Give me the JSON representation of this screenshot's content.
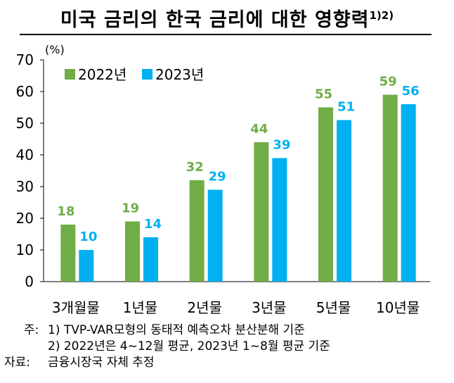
{
  "title": "미국 금리의 한국 금리에 대한 영향력",
  "title_sup": "1)2)",
  "chart_data": {
    "type": "bar",
    "ylabel": "(%)",
    "ylim": [
      0,
      70
    ],
    "yticks": [
      0,
      10,
      20,
      30,
      40,
      50,
      60,
      70
    ],
    "grid": false,
    "legend_position": "top-left",
    "categories": [
      "3개월물",
      "1년물",
      "2년물",
      "3년물",
      "5년물",
      "10년물"
    ],
    "series": [
      {
        "name": "2022년",
        "color": "#70AD47",
        "values": [
          18,
          19,
          32,
          44,
          55,
          59
        ]
      },
      {
        "name": "2023년",
        "color": "#00B0F0",
        "values": [
          10,
          14,
          29,
          39,
          51,
          56
        ]
      }
    ]
  },
  "notes": {
    "note1_prefix": "주:",
    "note1": "1) TVP-VAR모형의 동태적 예측오차 분산분해 기준",
    "note2": "2) 2022년은 4~12월 평균, 2023년 1~8월 평균 기준",
    "source_prefix": "자료:",
    "source": "금융시장국 자체 추정"
  }
}
